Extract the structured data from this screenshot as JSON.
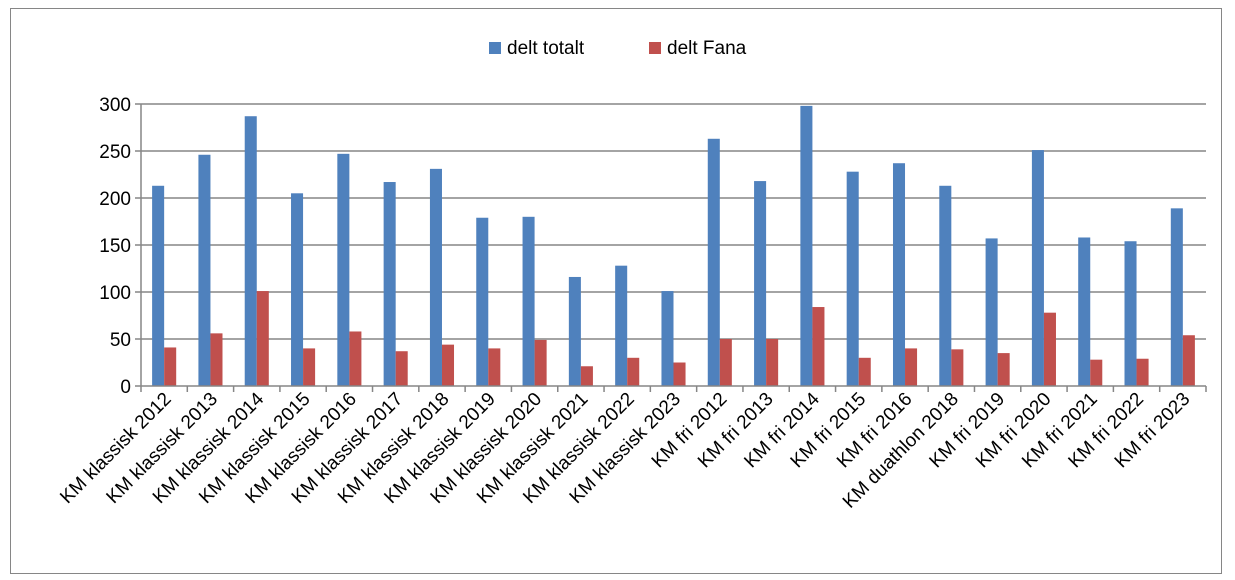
{
  "chart_data": {
    "type": "bar",
    "categories": [
      "KM klassisk 2012",
      "KM klassisk 2013",
      "KM klassisk 2014",
      "KM klassisk 2015",
      "KM klassisk 2016",
      "KM klassisk 2017",
      "KM klassisk 2018",
      "KM klassisk 2019",
      "KM klassisk 2020",
      "KM klassisk 2021",
      "KM klassisk 2022",
      "KM klassisk 2023",
      "KM fri 2012",
      "KM fri 2013",
      "KM fri 2014",
      "KM fri 2015",
      "KM fri 2016",
      "KM duathlon 2018",
      "KM fri 2019",
      "KM fri 2020",
      "KM fri 2021",
      "KM fri 2022",
      "KM fri 2023"
    ],
    "series": [
      {
        "name": "delt totalt",
        "color": "#4F81BD",
        "values": [
          213,
          246,
          287,
          205,
          247,
          217,
          231,
          179,
          180,
          116,
          128,
          101,
          263,
          218,
          298,
          228,
          237,
          213,
          157,
          251,
          158,
          154,
          189
        ]
      },
      {
        "name": "delt Fana",
        "color": "#C0504D",
        "values": [
          41,
          56,
          101,
          40,
          58,
          37,
          44,
          40,
          49,
          21,
          30,
          25,
          50,
          50,
          84,
          30,
          40,
          39,
          35,
          78,
          28,
          29,
          54
        ]
      }
    ],
    "yticks": [
      0,
      50,
      100,
      150,
      200,
      250,
      300
    ],
    "ylim": [
      0,
      300
    ],
    "legend_position": "top-center",
    "grid": true
  }
}
